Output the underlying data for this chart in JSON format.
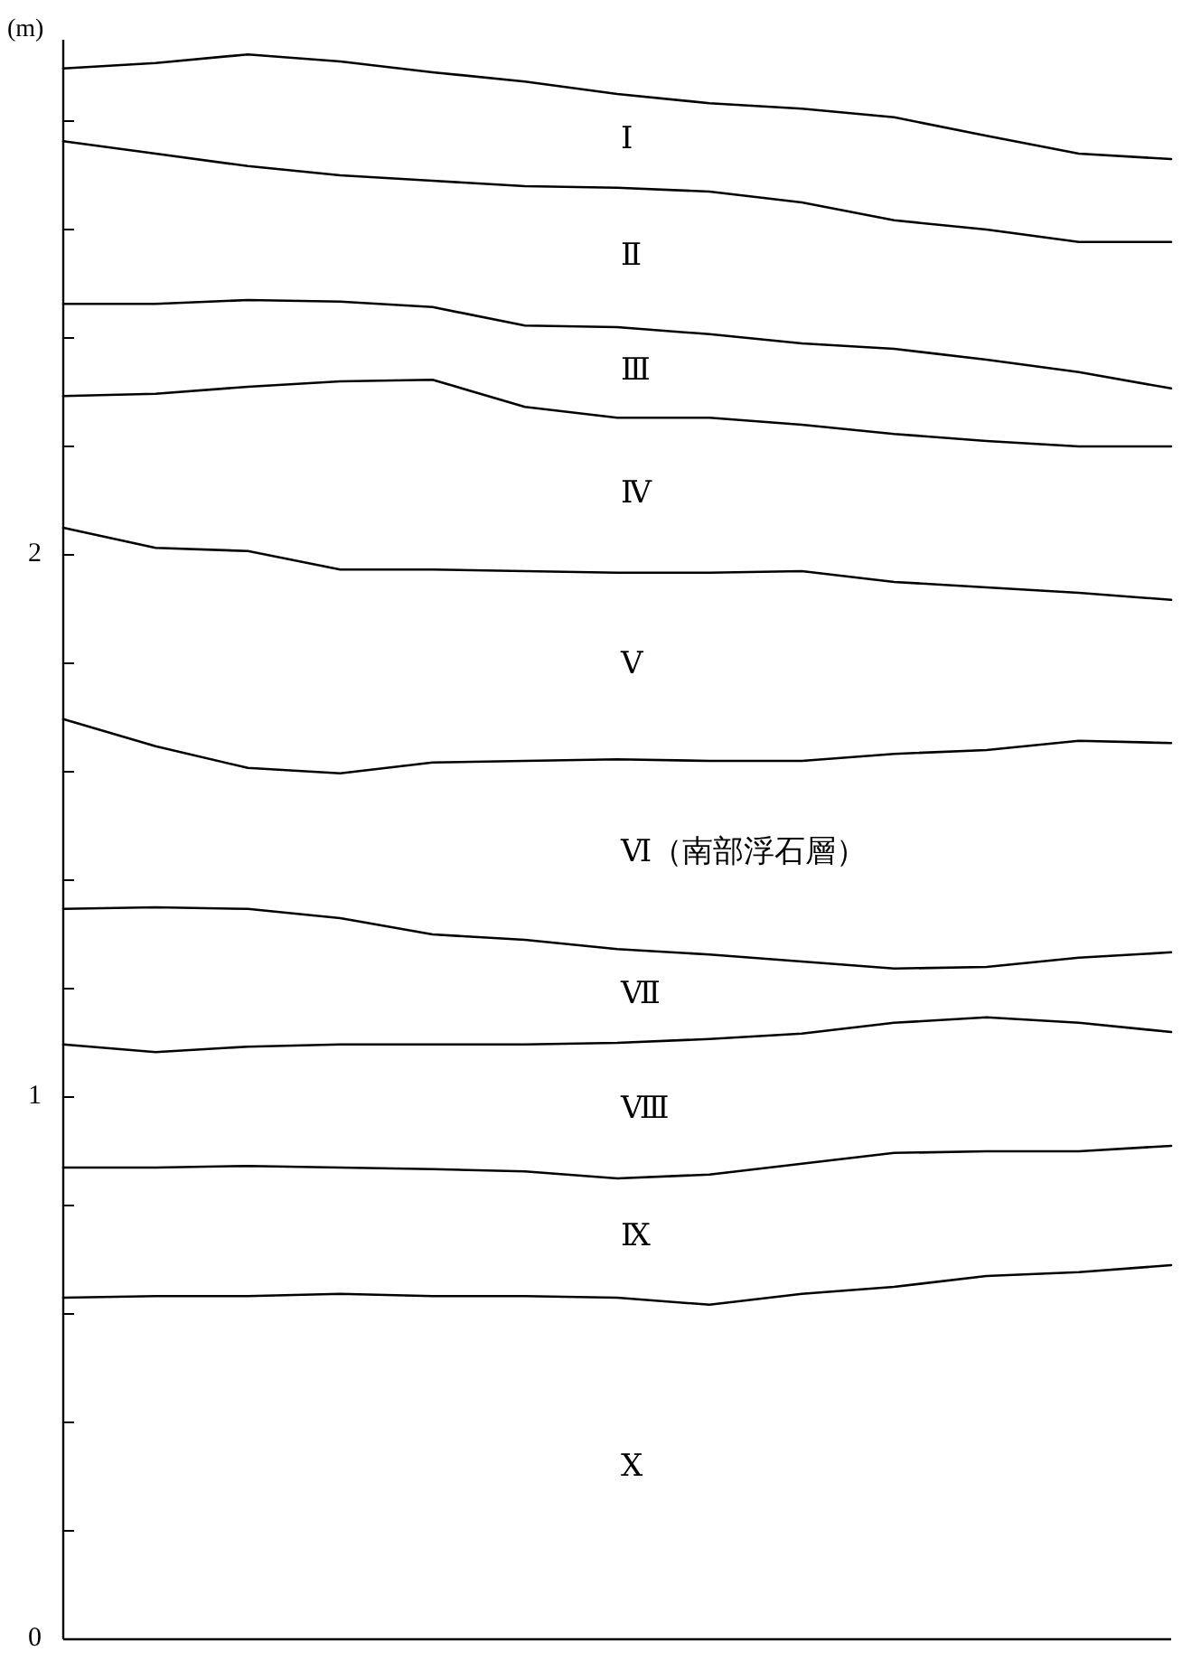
{
  "chart_data": {
    "type": "line",
    "ylabel": "(m)",
    "tick_labels": "y",
    "categories": [
      null,
      null,
      null,
      null,
      null,
      null,
      null,
      null,
      null,
      null,
      null,
      null,
      null
    ],
    "series": [
      {
        "color": "#000000",
        "values": [
          2.897,
          2.907,
          2.923,
          2.91,
          2.89,
          2.873,
          2.85,
          2.833,
          2.823,
          2.807,
          2.773,
          2.74,
          2.73
        ]
      },
      {
        "color": "#000000",
        "values": [
          2.763,
          2.74,
          2.717,
          2.7,
          2.69,
          2.68,
          2.677,
          2.67,
          2.65,
          2.617,
          2.6,
          2.577,
          2.577
        ]
      },
      {
        "color": "#000000",
        "values": [
          2.463,
          2.463,
          2.47,
          2.467,
          2.457,
          2.423,
          2.42,
          2.407,
          2.39,
          2.38,
          2.36,
          2.337,
          2.307
        ]
      },
      {
        "color": "#000000",
        "values": [
          2.293,
          2.297,
          2.31,
          2.32,
          2.323,
          2.273,
          2.253,
          2.253,
          2.24,
          2.223,
          2.21,
          2.2,
          2.2
        ]
      },
      {
        "color": "#000000",
        "values": [
          2.05,
          2.013,
          2.007,
          1.973,
          1.973,
          1.97,
          1.967,
          1.967,
          1.97,
          1.95,
          1.94,
          1.93,
          1.917
        ]
      },
      {
        "color": "#000000",
        "values": [
          1.697,
          1.647,
          1.607,
          1.597,
          1.617,
          1.62,
          1.623,
          1.62,
          1.62,
          1.633,
          1.64,
          1.657,
          1.653
        ]
      },
      {
        "color": "#000000",
        "values": [
          1.347,
          1.35,
          1.347,
          1.33,
          1.3,
          1.29,
          1.273,
          1.263,
          1.25,
          1.237,
          1.24,
          1.257,
          1.267
        ]
      },
      {
        "color": "#000000",
        "values": [
          1.097,
          1.083,
          1.093,
          1.097,
          1.097,
          1.097,
          1.1,
          1.107,
          1.117,
          1.137,
          1.147,
          1.137,
          1.12
        ]
      },
      {
        "color": "#000000",
        "values": [
          0.87,
          0.87,
          0.873,
          0.87,
          0.867,
          0.863,
          0.85,
          0.857,
          0.877,
          0.897,
          0.9,
          0.9,
          0.91
        ]
      },
      {
        "color": "#000000",
        "values": [
          0.63,
          0.633,
          0.633,
          0.637,
          0.633,
          0.633,
          0.63,
          0.617,
          0.637,
          0.65,
          0.67,
          0.677,
          0.69
        ]
      }
    ],
    "ylim": [
      0,
      2.95
    ],
    "yticks": [
      0,
      {
        "value": 0.2,
        "label": null
      },
      {
        "value": 0.4,
        "label": null
      },
      {
        "value": 0.6,
        "label": null
      },
      {
        "value": 0.8,
        "label": null
      },
      1,
      {
        "value": 1.2,
        "label": null
      },
      {
        "value": 1.4,
        "label": null
      },
      {
        "value": 1.6,
        "label": null
      },
      {
        "value": 1.8,
        "label": null
      },
      2,
      {
        "value": 2.2,
        "label": null
      },
      {
        "value": 2.4,
        "label": null
      },
      {
        "value": 2.6,
        "label": null
      },
      {
        "value": 2.8,
        "label": null
      }
    ],
    "annotations": [
      "Ⅰ",
      "Ⅱ",
      "Ⅲ",
      "Ⅳ",
      "Ⅴ",
      "Ⅵ（南部浮石層）",
      "Ⅶ",
      "Ⅷ",
      "Ⅸ",
      "Ⅹ"
    ]
  }
}
